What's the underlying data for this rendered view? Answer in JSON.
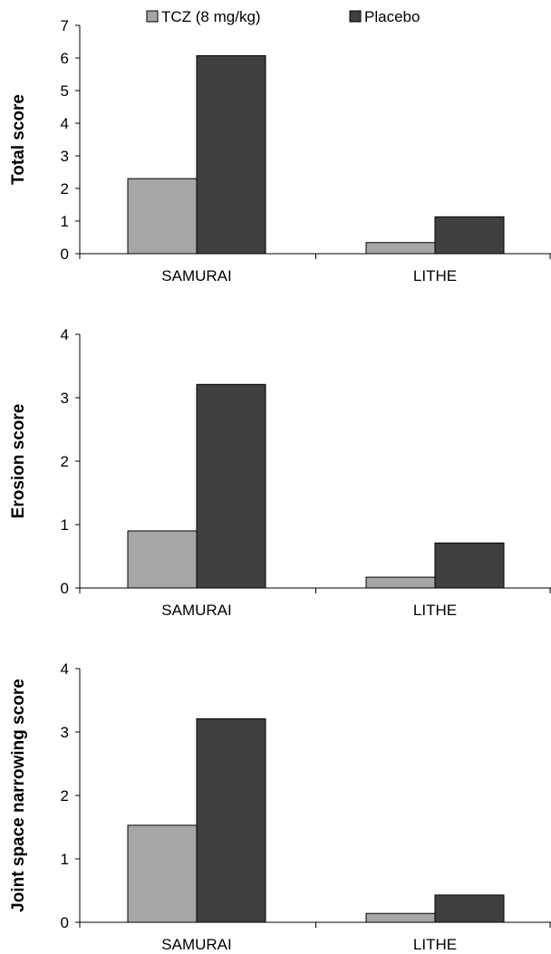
{
  "colors": {
    "tcz": "#a6a6a6",
    "placebo": "#404040",
    "axis": "#000000"
  },
  "legend": {
    "items": [
      {
        "label": "TCZ (8 mg/kg)",
        "color": "#a6a6a6"
      },
      {
        "label": "Placebo",
        "color": "#404040"
      }
    ]
  },
  "chart_data": [
    {
      "type": "bar",
      "ylabel": "Total score",
      "categories": [
        "SAMURAI",
        "LITHE"
      ],
      "ylim": [
        0,
        7
      ],
      "yticks": [
        0,
        1,
        2,
        3,
        4,
        5,
        6,
        7
      ],
      "series": [
        {
          "name": "TCZ (8 mg/kg)",
          "values": [
            2.3,
            0.34
          ]
        },
        {
          "name": "Placebo",
          "values": [
            6.07,
            1.13
          ]
        }
      ]
    },
    {
      "type": "bar",
      "ylabel": "Erosion score",
      "categories": [
        "SAMURAI",
        "LITHE"
      ],
      "ylim": [
        0,
        4
      ],
      "yticks": [
        0,
        1,
        2,
        3,
        4
      ],
      "series": [
        {
          "name": "TCZ (8 mg/kg)",
          "values": [
            0.9,
            0.17
          ]
        },
        {
          "name": "Placebo",
          "values": [
            3.21,
            0.71
          ]
        }
      ]
    },
    {
      "type": "bar",
      "ylabel": "Joint space narrowing score",
      "categories": [
        "SAMURAI",
        "LITHE"
      ],
      "ylim": [
        0,
        4
      ],
      "yticks": [
        0,
        1,
        2,
        3,
        4
      ],
      "series": [
        {
          "name": "TCZ (8 mg/kg)",
          "values": [
            1.53,
            0.14
          ]
        },
        {
          "name": "Placebo",
          "values": [
            3.21,
            0.43
          ]
        }
      ]
    }
  ]
}
